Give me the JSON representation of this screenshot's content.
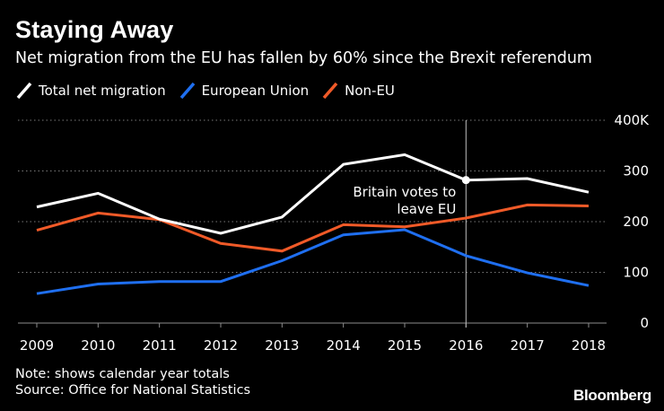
{
  "header": {
    "title": "Staying Away",
    "subtitle": "Net migration from the EU has fallen by 60% since the Brexit referendum"
  },
  "legend": [
    {
      "label": "Total net migration",
      "color": "#ffffff"
    },
    {
      "label": "European Union",
      "color": "#1f6ff0"
    },
    {
      "label": "Non-EU",
      "color": "#f05a28"
    }
  ],
  "chart_data": {
    "type": "line",
    "title": "Staying Away",
    "subtitle": "Net migration from the EU has fallen by 60% since the Brexit referendum",
    "x": [
      2009,
      2010,
      2011,
      2012,
      2013,
      2014,
      2015,
      2016,
      2017,
      2018
    ],
    "x_tick_labels": [
      "2009",
      "2010",
      "2011",
      "2012",
      "2013",
      "2014",
      "2015",
      "2016",
      "2017",
      "2018"
    ],
    "ylim": [
      0,
      400
    ],
    "y_ticks": [
      0,
      100,
      200,
      300,
      400
    ],
    "y_tick_labels": [
      "0",
      "100",
      "200",
      "300",
      "400K"
    ],
    "y_axis_side": "right",
    "grid": "horizontal dotted",
    "series": [
      {
        "name": "Total net migration",
        "color": "#ffffff",
        "values": [
          229,
          256,
          205,
          177,
          209,
          313,
          332,
          282,
          285,
          258
        ]
      },
      {
        "name": "European Union",
        "color": "#1f6ff0",
        "values": [
          58,
          77,
          82,
          82,
          123,
          174,
          184,
          133,
          99,
          74
        ]
      },
      {
        "name": "Non-EU",
        "color": "#f05a28",
        "values": [
          183,
          217,
          204,
          157,
          142,
          194,
          190,
          207,
          233,
          231
        ]
      }
    ],
    "annotation": {
      "x": 2016,
      "text_line1": "Britain votes to",
      "text_line2": "leave EU",
      "marker_series": "Total net migration"
    }
  },
  "footer": {
    "note": "Note: shows calendar year totals",
    "source": "Source: Office for National Statistics",
    "logo": "Bloomberg"
  }
}
